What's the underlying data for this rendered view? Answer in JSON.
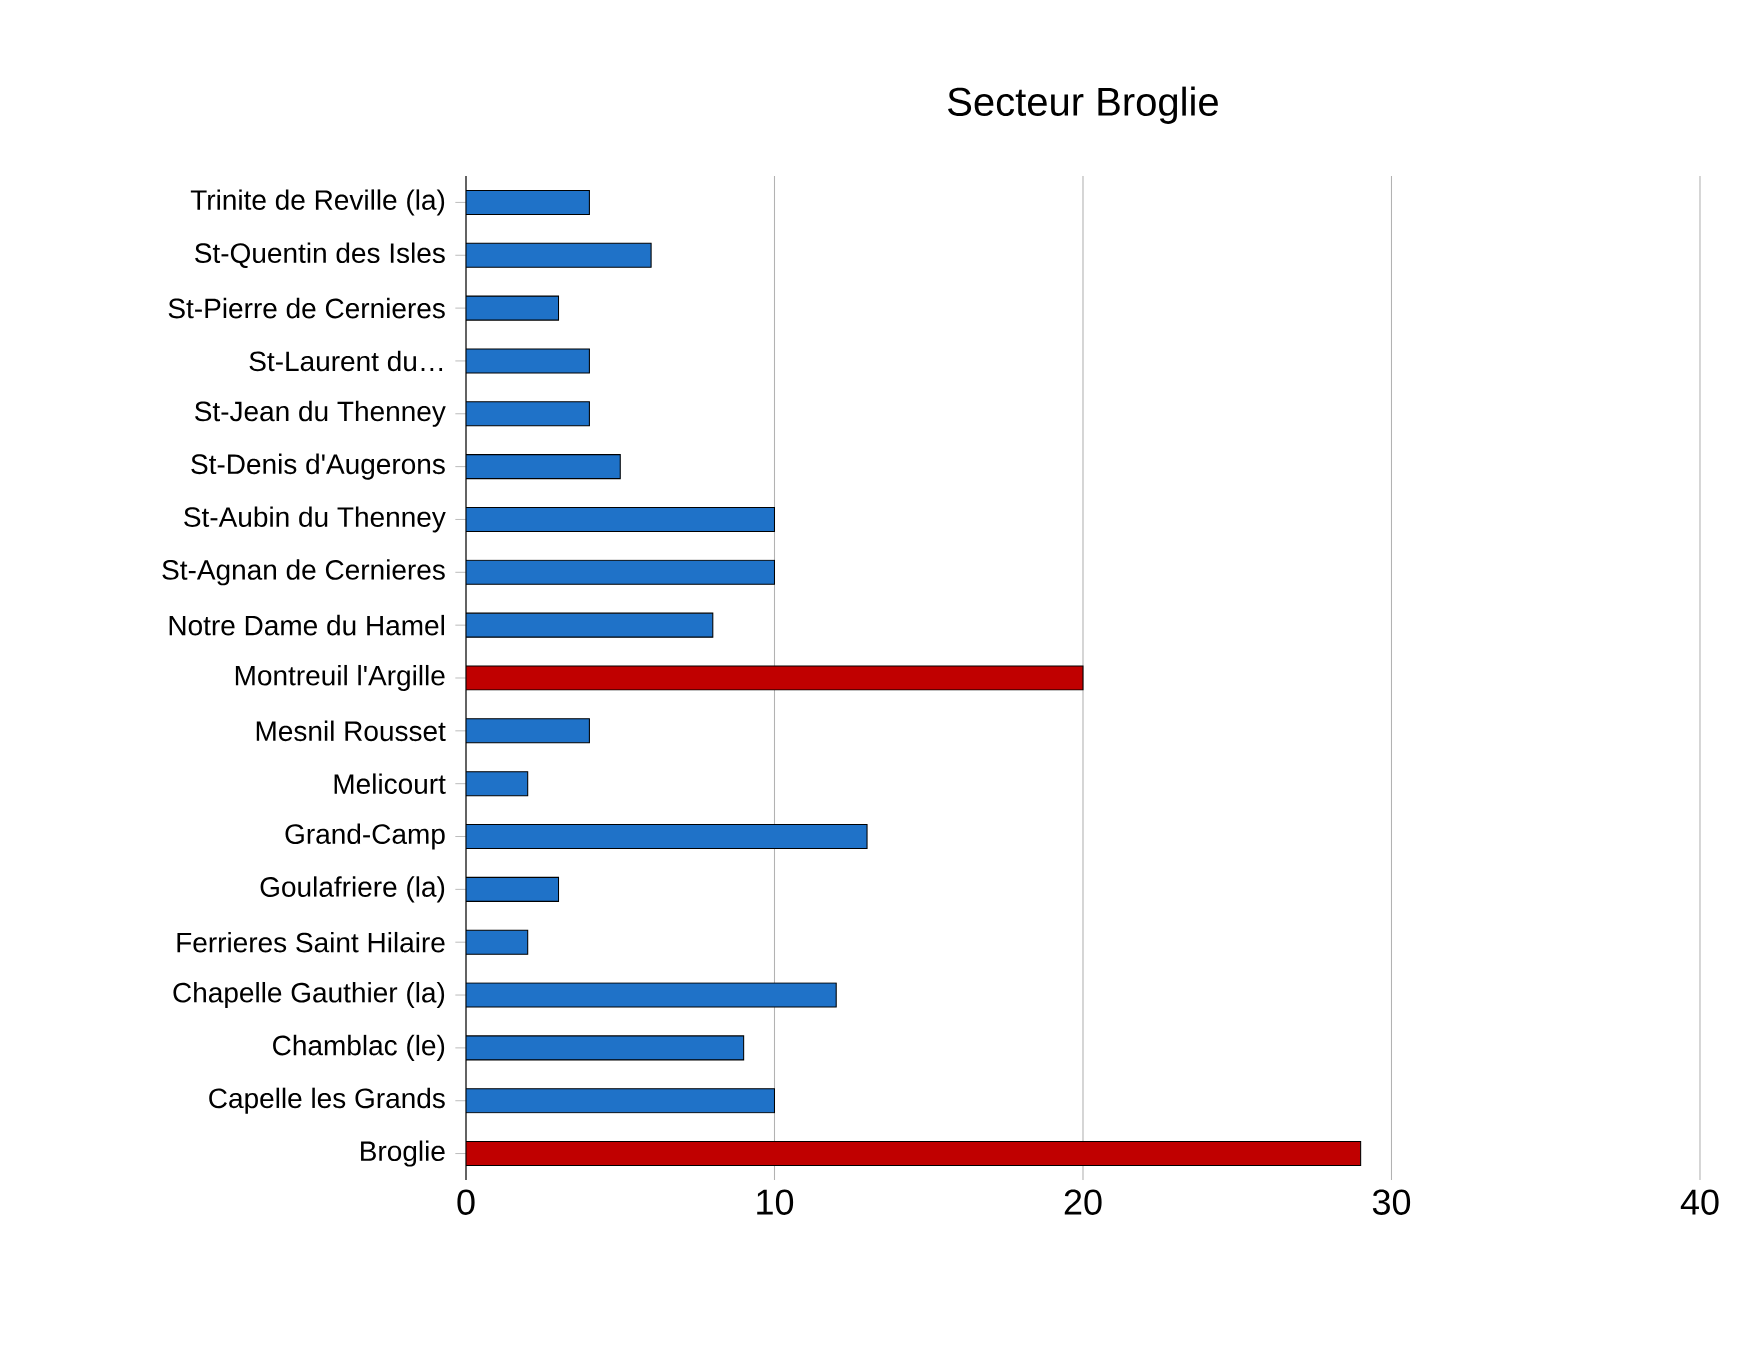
{
  "chart_data": {
    "type": "bar",
    "orientation": "horizontal",
    "title": "Secteur Broglie",
    "categories": [
      "Trinite de Reville (la)",
      "St-Quentin des Isles",
      "St-Pierre de Cernieres",
      "St-Laurent du…",
      "St-Jean du Thenney",
      "St-Denis d'Augerons",
      "St-Aubin du Thenney",
      "St-Agnan de Cernieres",
      "Notre Dame du Hamel",
      "Montreuil l'Argille",
      "Mesnil Rousset",
      "Melicourt",
      "Grand-Camp",
      "Goulafriere (la)",
      "Ferrieres Saint Hilaire",
      "Chapelle Gauthier (la)",
      "Chamblac (le)",
      "Capelle les Grands",
      "Broglie"
    ],
    "values": [
      4,
      6,
      3,
      4,
      4,
      5,
      10,
      10,
      8,
      20,
      4,
      2,
      13,
      3,
      2,
      12,
      9,
      10,
      29
    ],
    "colors": [
      "#1f72c8",
      "#1f72c8",
      "#1f72c8",
      "#1f72c8",
      "#1f72c8",
      "#1f72c8",
      "#1f72c8",
      "#1f72c8",
      "#1f72c8",
      "#c00000",
      "#1f72c8",
      "#1f72c8",
      "#1f72c8",
      "#1f72c8",
      "#1f72c8",
      "#1f72c8",
      "#1f72c8",
      "#1f72c8",
      "#c00000"
    ],
    "xlim": [
      0,
      40
    ],
    "xticks": [
      0,
      10,
      20,
      30,
      40
    ],
    "grid": "x"
  }
}
